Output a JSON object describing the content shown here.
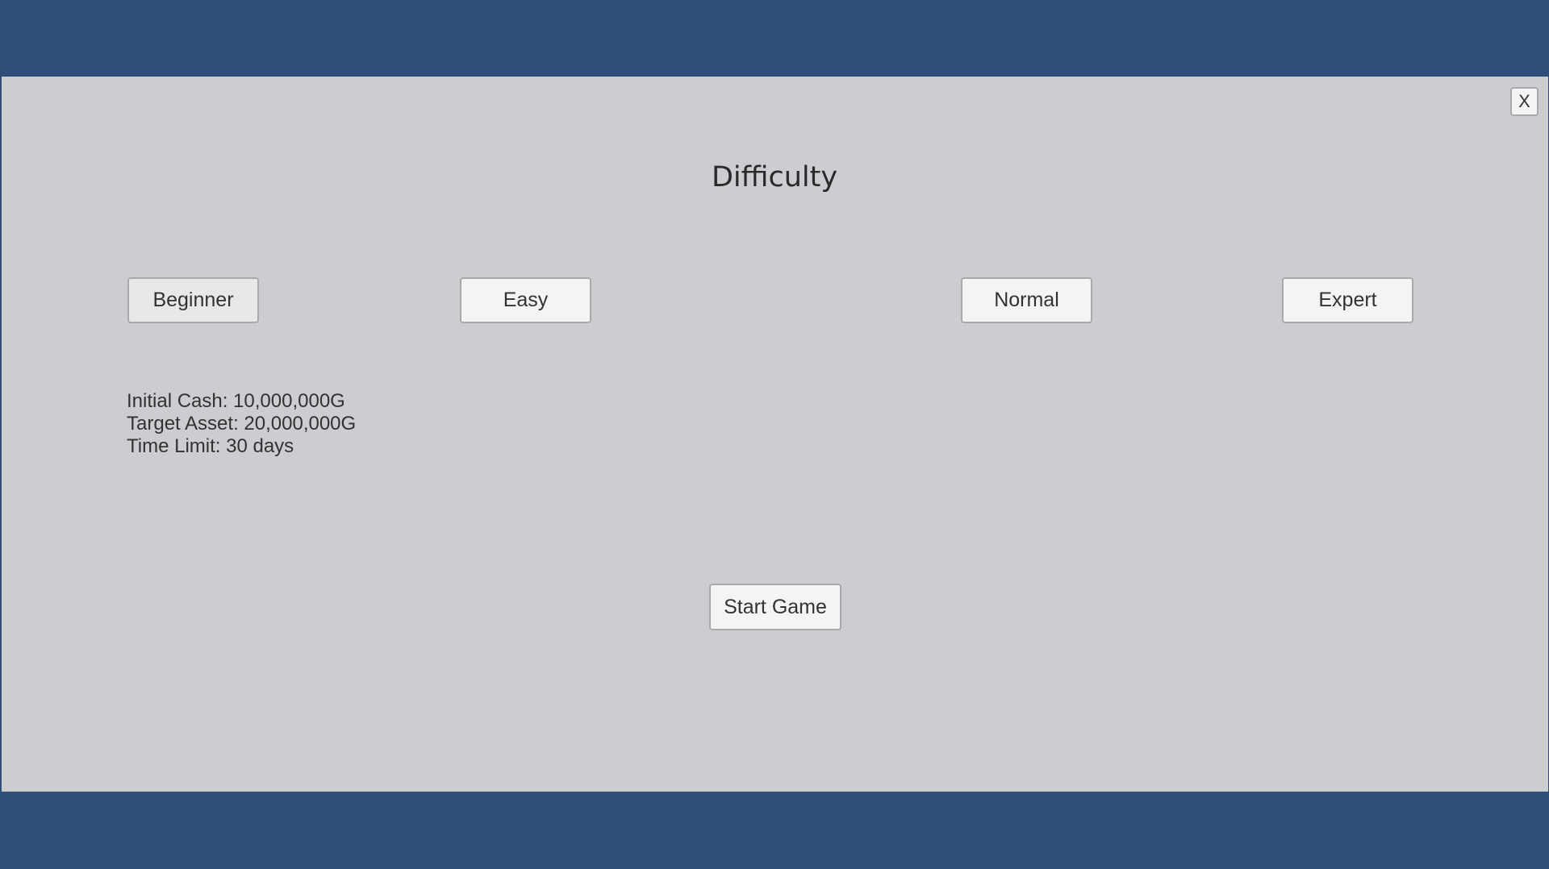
{
  "dialog": {
    "title": "Difficulty",
    "close_label": "X",
    "difficulties": [
      {
        "label": "Beginner",
        "selected": true
      },
      {
        "label": "Easy",
        "selected": false
      },
      {
        "label": "Normal",
        "selected": false
      },
      {
        "label": "Expert",
        "selected": false
      }
    ],
    "info": {
      "initial_cash": "Initial Cash: 10,000,000G",
      "target_asset": "Target Asset: 20,000,000G",
      "time_limit": "Time Limit: 30 days"
    },
    "start_label": "Start Game"
  },
  "colors": {
    "background": "#2f4e7a",
    "panel": "#cccdd1",
    "button": "#f4f4f5"
  }
}
